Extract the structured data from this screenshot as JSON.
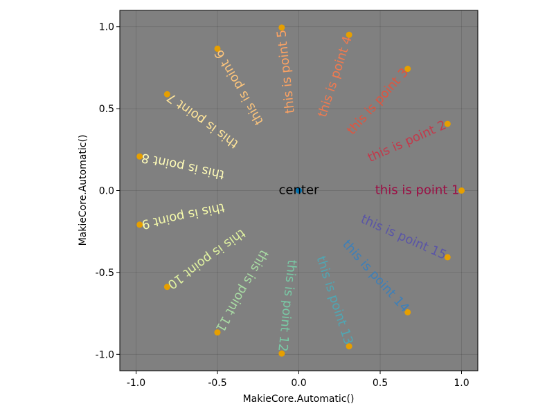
{
  "chart_data": {
    "type": "scatter",
    "xlabel": "MakieCore.Automatic()",
    "ylabel": "MakieCore.Automatic()",
    "xlim": [
      -1.1,
      1.1
    ],
    "ylim": [
      -1.1,
      1.1
    ],
    "x_ticks": [
      -1.0,
      -0.5,
      0.0,
      0.5,
      1.0
    ],
    "y_ticks": [
      -1.0,
      -0.5,
      0.0,
      0.5,
      1.0
    ],
    "x_tick_labels": [
      "-1.0",
      "-0.5",
      "0.0",
      "0.5",
      "1.0"
    ],
    "y_tick_labels": [
      "-1.0",
      "-0.5",
      "0.0",
      "0.5",
      "1.0"
    ],
    "grid": true,
    "background_color": "#808080",
    "marker_color": "#e69f00",
    "center": {
      "x": 0.0,
      "y": 0.0,
      "label": "center",
      "label_color": "#000000",
      "marker_color": "#0072b2"
    },
    "points": [
      {
        "x": 1.0,
        "y": 0.0,
        "label": "this is point 1",
        "color": "#9c0f45"
      },
      {
        "x": 0.914,
        "y": 0.407,
        "label": "this is point 2",
        "color": "#c23a4b"
      },
      {
        "x": 0.669,
        "y": 0.743,
        "label": "this is point 3",
        "color": "#e0543e"
      },
      {
        "x": 0.309,
        "y": 0.951,
        "label": "this is point 4",
        "color": "#f07a4f"
      },
      {
        "x": -0.105,
        "y": 0.995,
        "label": "this is point 5",
        "color": "#fba263"
      },
      {
        "x": -0.5,
        "y": 0.866,
        "label": "this is point 6",
        "color": "#fdc57c"
      },
      {
        "x": -0.809,
        "y": 0.588,
        "label": "this is point 7",
        "color": "#fee49a"
      },
      {
        "x": -0.978,
        "y": 0.208,
        "label": "this is point 8",
        "color": "#fffcb8"
      },
      {
        "x": -0.978,
        "y": -0.208,
        "label": "this is point 9",
        "color": "#f6fbab"
      },
      {
        "x": -0.809,
        "y": -0.588,
        "label": "this is point 10",
        "color": "#dff1a0"
      },
      {
        "x": -0.5,
        "y": -0.866,
        "label": "this is point 11",
        "color": "#a9dca4"
      },
      {
        "x": -0.105,
        "y": -0.995,
        "label": "this is point 12",
        "color": "#79c9a5"
      },
      {
        "x": 0.309,
        "y": -0.951,
        "label": "this is point 13",
        "color": "#4fa7b4"
      },
      {
        "x": 0.669,
        "y": -0.743,
        "label": "this is point 14",
        "color": "#3d7fb8"
      },
      {
        "x": 0.914,
        "y": -0.407,
        "label": "this is point 15",
        "color": "#5a55a6"
      }
    ]
  }
}
